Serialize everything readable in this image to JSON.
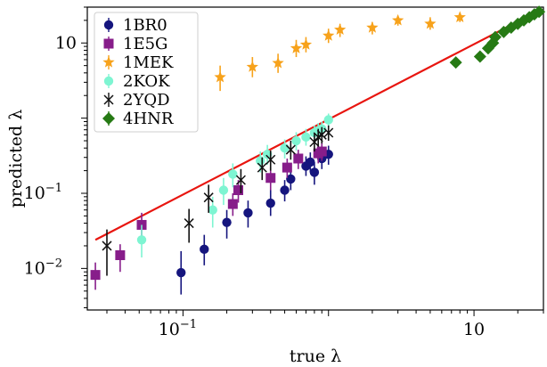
{
  "chart_data": {
    "type": "scatter",
    "xlabel": "true λ",
    "ylabel": "predicted λ",
    "xscale": "log",
    "yscale": "log",
    "xlim": [
      0.022,
      30
    ],
    "ylim": [
      0.0028,
      30
    ],
    "x_ticks": [
      {
        "value": 0.1,
        "label": "10",
        "exp": "−1"
      },
      {
        "value": 10,
        "label": "10",
        "exp": ""
      }
    ],
    "y_ticks": [
      {
        "value": 0.01,
        "label": "10",
        "exp": "−2"
      },
      {
        "value": 0.1,
        "label": "10",
        "exp": "−1"
      },
      {
        "value": 10,
        "label": "10",
        "exp": ""
      }
    ],
    "grid": false,
    "legend_position": "top-left",
    "reference_line": {
      "color": "#e8150f",
      "x": [
        0.025,
        28
      ],
      "y": [
        0.024,
        27
      ]
    },
    "series": [
      {
        "name": "1BR0",
        "marker": "circle",
        "color": "#15157e",
        "points": [
          [
            0.097,
            0.0088,
            0.0045,
            0.017
          ],
          [
            0.14,
            0.018,
            0.011,
            0.028
          ],
          [
            0.2,
            0.041,
            0.025,
            0.06
          ],
          [
            0.28,
            0.055,
            0.035,
            0.08
          ],
          [
            0.4,
            0.074,
            0.05,
            0.11
          ],
          [
            0.5,
            0.11,
            0.078,
            0.15
          ],
          [
            0.55,
            0.155,
            0.11,
            0.21
          ],
          [
            0.7,
            0.23,
            0.17,
            0.31
          ],
          [
            0.75,
            0.26,
            0.19,
            0.35
          ],
          [
            0.8,
            0.19,
            0.13,
            0.26
          ],
          [
            0.9,
            0.29,
            0.21,
            0.38
          ],
          [
            1.0,
            0.33,
            0.24,
            0.43
          ]
        ]
      },
      {
        "name": "1E5G",
        "marker": "square",
        "color": "#871d8a",
        "points": [
          [
            0.025,
            0.0082,
            0.0052,
            0.012
          ],
          [
            0.037,
            0.015,
            0.009,
            0.021
          ],
          [
            0.052,
            0.038,
            0.025,
            0.055
          ],
          [
            0.22,
            0.072,
            0.05,
            0.1
          ],
          [
            0.24,
            0.11,
            0.075,
            0.15
          ],
          [
            0.4,
            0.16,
            0.11,
            0.22
          ],
          [
            0.52,
            0.22,
            0.16,
            0.29
          ],
          [
            0.62,
            0.29,
            0.21,
            0.38
          ],
          [
            0.85,
            0.34,
            0.25,
            0.44
          ],
          [
            0.9,
            0.36,
            0.27,
            0.47
          ]
        ]
      },
      {
        "name": "1MEK",
        "marker": "star",
        "color": "#f7a21b",
        "points": [
          [
            0.18,
            3.5,
            2.3,
            5.0
          ],
          [
            0.3,
            4.8,
            3.5,
            6.5
          ],
          [
            0.45,
            5.4,
            4.0,
            7.2
          ],
          [
            0.6,
            8.5,
            6.5,
            11
          ],
          [
            0.7,
            9.5,
            7.5,
            12
          ],
          [
            1.0,
            12.5,
            10,
            15.5
          ],
          [
            1.2,
            15,
            12,
            18
          ],
          [
            2.0,
            16,
            13,
            19
          ],
          [
            3.0,
            20,
            17,
            23
          ],
          [
            5.0,
            18,
            15,
            22
          ],
          [
            8.0,
            22,
            19,
            25
          ]
        ]
      },
      {
        "name": "2KOK",
        "marker": "circle",
        "color": "#7ef5d2",
        "points": [
          [
            0.052,
            0.024,
            0.014,
            0.038
          ],
          [
            0.16,
            0.06,
            0.035,
            0.09
          ],
          [
            0.19,
            0.11,
            0.07,
            0.16
          ],
          [
            0.22,
            0.18,
            0.12,
            0.25
          ],
          [
            0.34,
            0.27,
            0.19,
            0.36
          ],
          [
            0.38,
            0.33,
            0.24,
            0.44
          ],
          [
            0.5,
            0.4,
            0.29,
            0.52
          ],
          [
            0.6,
            0.5,
            0.37,
            0.65
          ],
          [
            0.7,
            0.56,
            0.43,
            0.72
          ],
          [
            0.8,
            0.64,
            0.5,
            0.8
          ],
          [
            0.85,
            0.68,
            0.53,
            0.86
          ],
          [
            0.9,
            0.72,
            0.56,
            0.9
          ],
          [
            1.0,
            0.95,
            0.75,
            1.15
          ]
        ]
      },
      {
        "name": "2YQD",
        "marker": "x",
        "color": "#111111",
        "points": [
          [
            0.03,
            0.02,
            0.008,
            0.033
          ],
          [
            0.11,
            0.04,
            0.022,
            0.062
          ],
          [
            0.15,
            0.088,
            0.055,
            0.13
          ],
          [
            0.25,
            0.15,
            0.1,
            0.21
          ],
          [
            0.35,
            0.22,
            0.15,
            0.3
          ],
          [
            0.4,
            0.28,
            0.2,
            0.37
          ],
          [
            0.55,
            0.38,
            0.28,
            0.5
          ],
          [
            0.8,
            0.48,
            0.36,
            0.62
          ],
          [
            0.85,
            0.56,
            0.42,
            0.72
          ],
          [
            0.9,
            0.6,
            0.46,
            0.76
          ],
          [
            1.0,
            0.64,
            0.5,
            0.8
          ]
        ]
      },
      {
        "name": "4HNR",
        "marker": "diamond",
        "color": "#267a14",
        "points": [
          [
            7.5,
            5.5,
            5.5,
            5.5
          ],
          [
            11,
            6.6,
            6.6,
            6.6
          ],
          [
            12.5,
            8.5,
            8.5,
            8.5
          ],
          [
            13.5,
            10,
            10,
            10
          ],
          [
            14,
            12,
            12,
            12
          ],
          [
            16,
            14,
            14,
            14
          ],
          [
            18,
            16,
            16,
            16
          ],
          [
            20,
            18,
            18,
            18
          ],
          [
            22,
            20,
            20,
            20
          ],
          [
            24,
            22,
            22,
            22
          ],
          [
            26,
            24,
            24,
            24
          ],
          [
            28,
            26,
            26,
            26
          ]
        ]
      }
    ]
  }
}
